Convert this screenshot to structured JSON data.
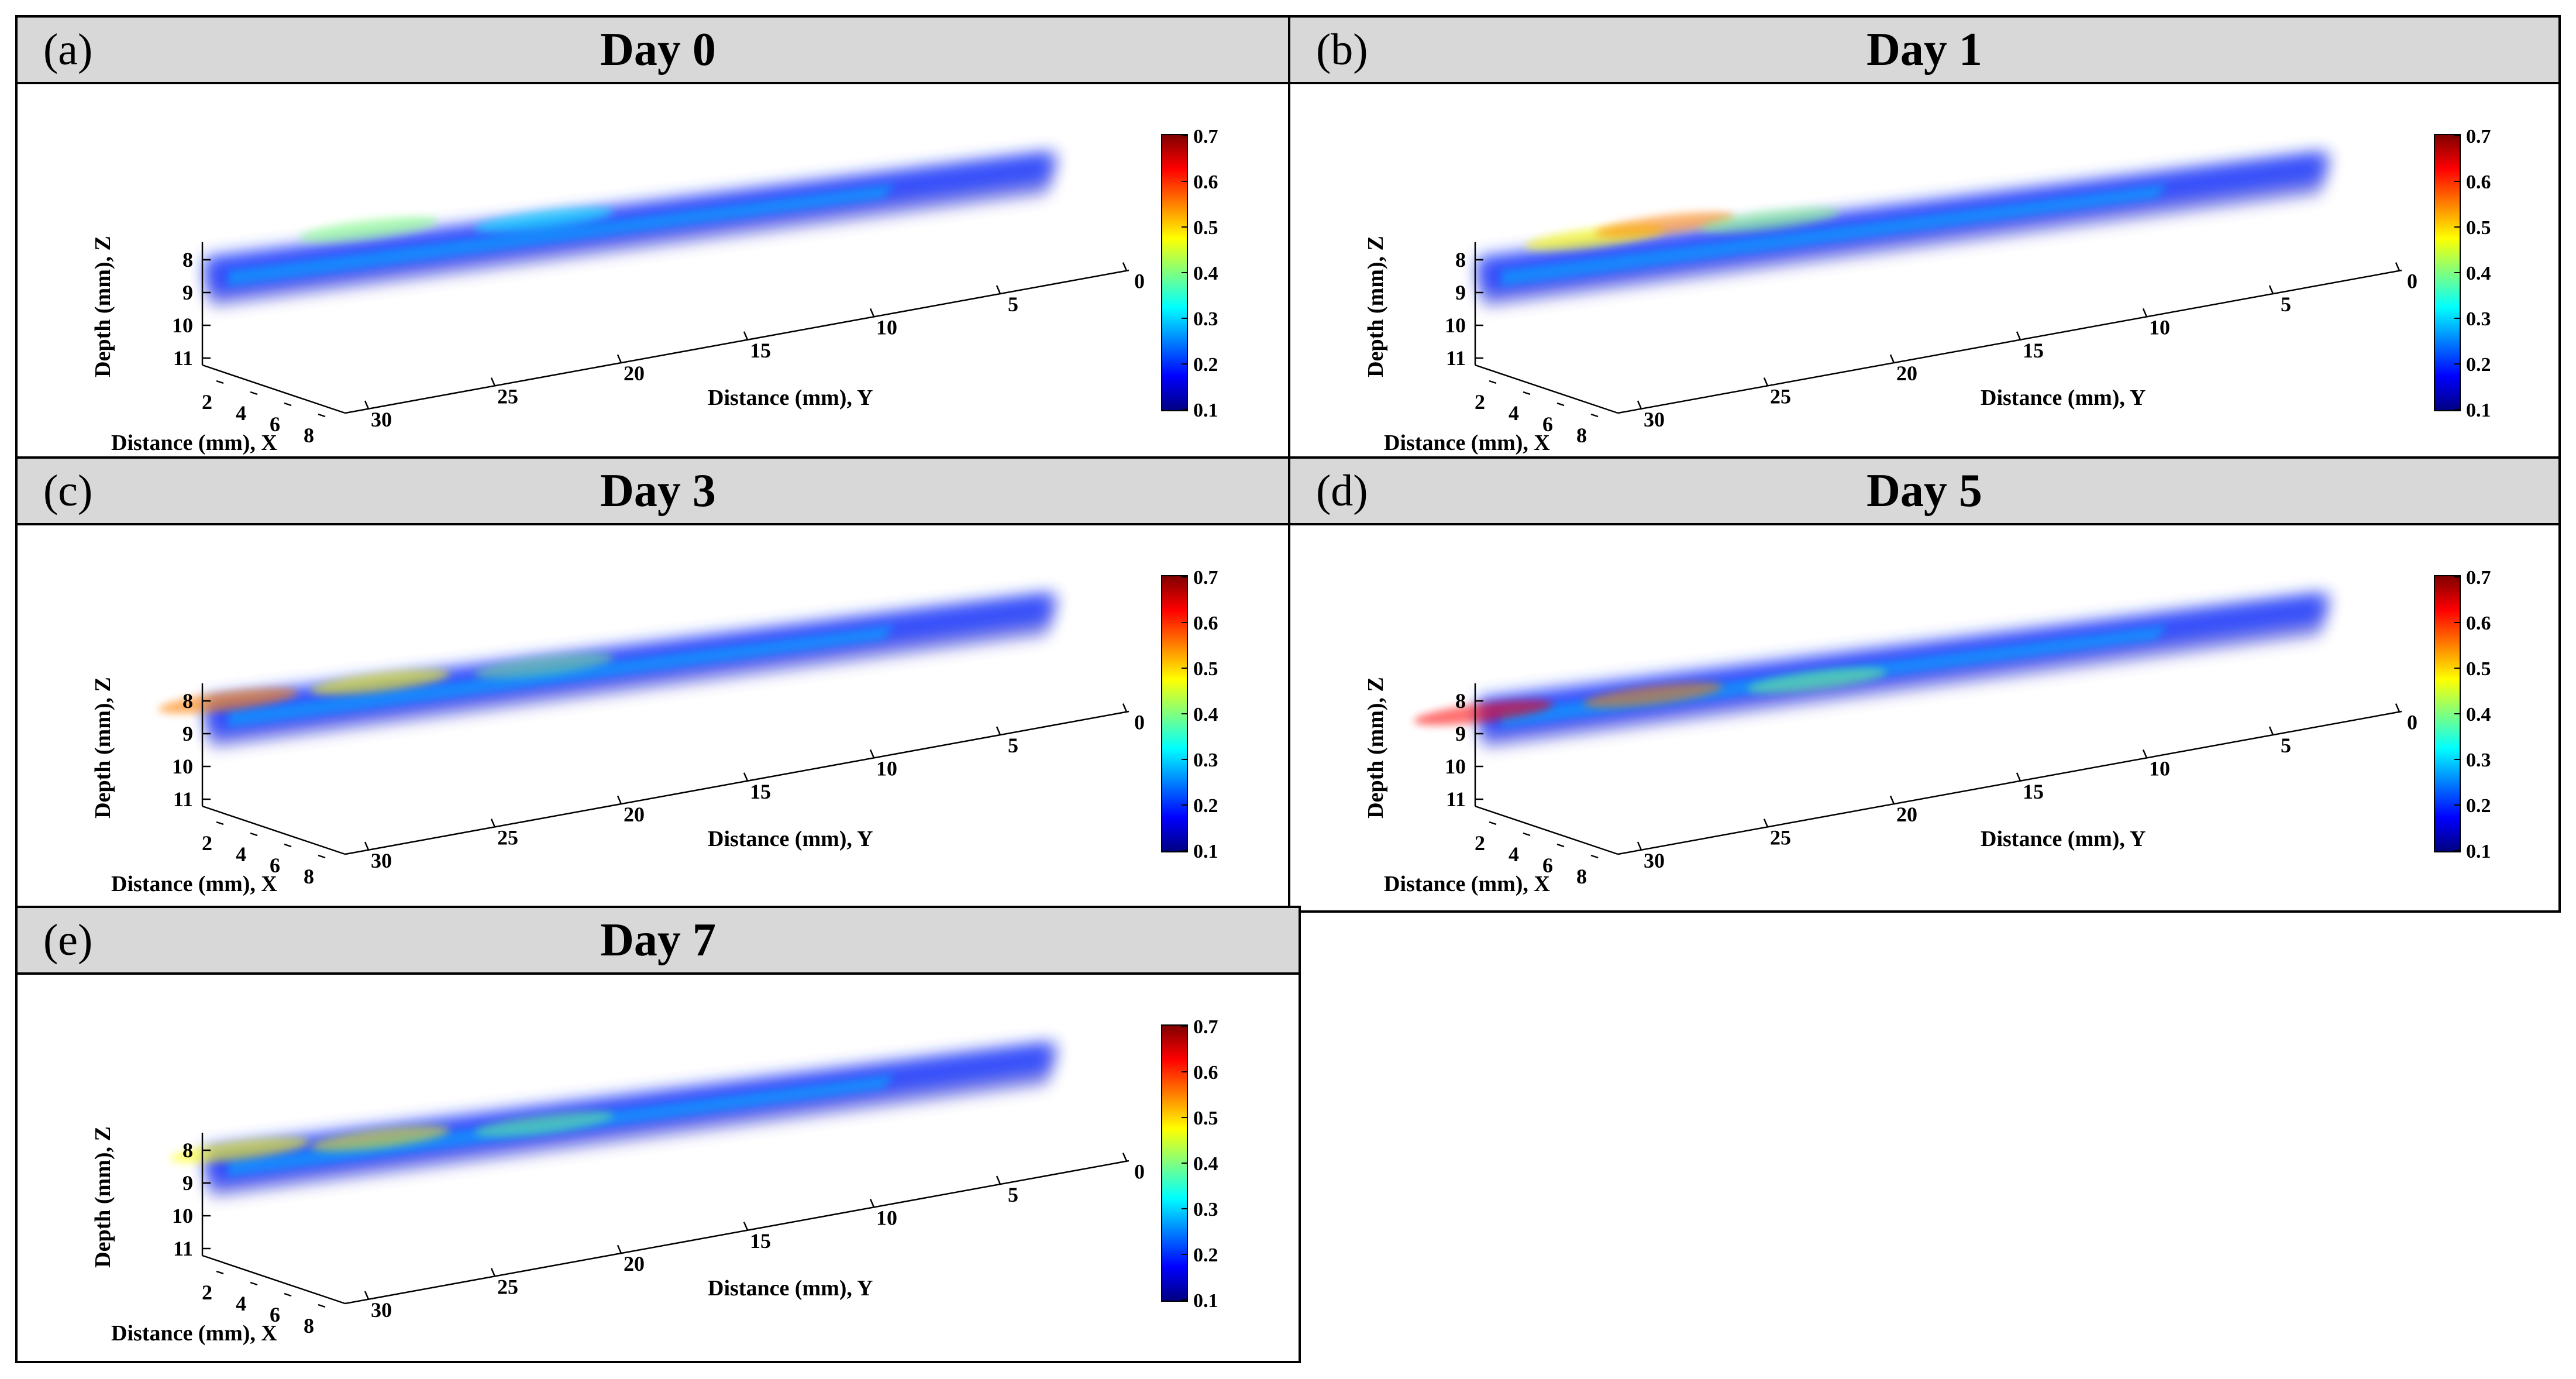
{
  "colorbar": {
    "ticks": [
      "0.7",
      "0.6",
      "0.5",
      "0.4",
      "0.3",
      "0.2",
      "0.1"
    ]
  },
  "axes": {
    "xlabel": "Distance (mm), X",
    "ylabel": "Distance (mm), Y",
    "zlabel": "Depth (mm), Z",
    "x_ticks": [
      "2",
      "4",
      "6",
      "8"
    ],
    "y_ticks": [
      "30",
      "25",
      "20",
      "15",
      "10",
      "5",
      "0"
    ],
    "z_ticks": [
      "8",
      "9",
      "10",
      "11"
    ]
  },
  "panels": [
    {
      "label": "(a)",
      "title": "Day 0",
      "hotspots": []
    },
    {
      "label": "(b)",
      "title": "Day 1",
      "hotspots": []
    },
    {
      "label": "(c)",
      "title": "Day 3",
      "hotspots": []
    },
    {
      "label": "(d)",
      "title": "Day 5",
      "hotspots": []
    },
    {
      "label": "(e)",
      "title": "Day 7",
      "hotspots": []
    }
  ]
}
